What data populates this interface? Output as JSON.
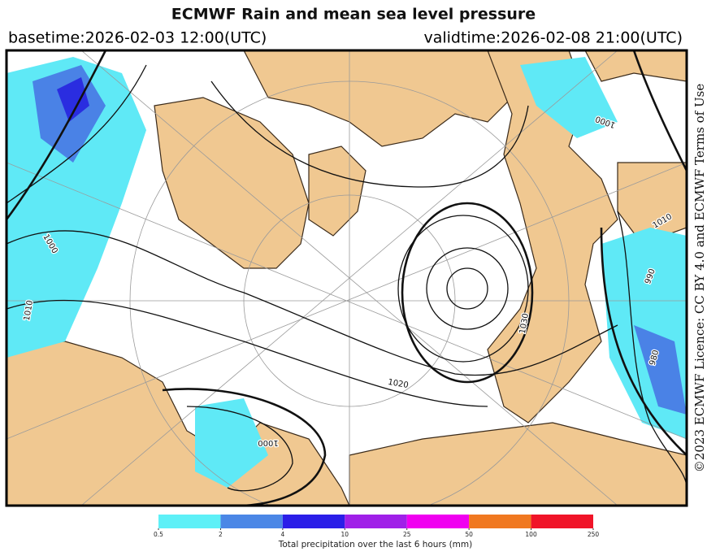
{
  "header": {
    "title": "ECMWF Rain and mean sea level pressure",
    "basetime": "basetime:2026-02-03 12:00(UTC)",
    "validtime": "validtime:2026-02-08 21:00(UTC)"
  },
  "license": "©2023 ECMWF  Licence: CC BY 4.0 and ECMWF  Terms of Use",
  "isobar_labels": [
    "1000",
    "1010",
    "1000",
    "1020",
    "1030",
    "1000",
    "990",
    "980",
    "1010"
  ],
  "colorbar": {
    "ticks": [
      0.5,
      2,
      4,
      10,
      25,
      50,
      100,
      250
    ],
    "colors": [
      "#5ef0f7",
      "#4b87e6",
      "#2b1ee8",
      "#a020e8",
      "#f000f0",
      "#f07820",
      "#f01428"
    ],
    "label": "Total precipitation over the last 6 hours (mm)"
  }
}
